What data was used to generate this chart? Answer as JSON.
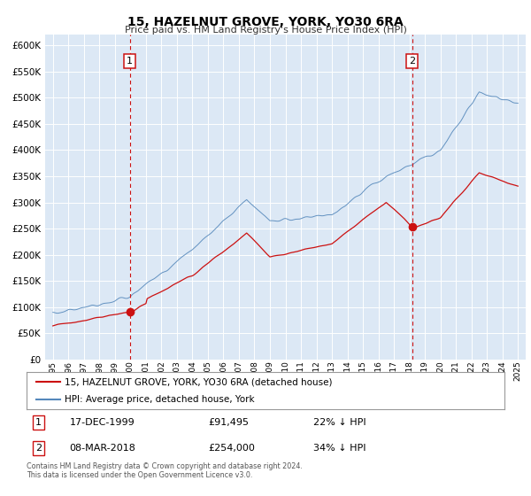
{
  "title": "15, HAZELNUT GROVE, YORK, YO30 6RA",
  "subtitle": "Price paid vs. HM Land Registry's House Price Index (HPI)",
  "legend_label_red": "15, HAZELNUT GROVE, YORK, YO30 6RA (detached house)",
  "legend_label_blue": "HPI: Average price, detached house, York",
  "annotation1_label": "1",
  "annotation1_date": "17-DEC-1999",
  "annotation1_price": "£91,495",
  "annotation1_hpi": "22% ↓ HPI",
  "annotation1_year": 1999.96,
  "annotation1_value": 91495,
  "annotation2_label": "2",
  "annotation2_date": "08-MAR-2018",
  "annotation2_price": "£254,000",
  "annotation2_hpi": "34% ↓ HPI",
  "annotation2_year": 2018.18,
  "annotation2_value": 254000,
  "ylim": [
    0,
    620000
  ],
  "yticks": [
    0,
    50000,
    100000,
    150000,
    200000,
    250000,
    300000,
    350000,
    400000,
    450000,
    500000,
    550000,
    600000
  ],
  "xlim_start": 1994.5,
  "xlim_end": 2025.5,
  "background_color": "#dce8f5",
  "red_color": "#cc1111",
  "blue_color": "#5588bb",
  "grid_color": "#ffffff",
  "footnote": "Contains HM Land Registry data © Crown copyright and database right 2024.\nThis data is licensed under the Open Government Licence v3.0."
}
